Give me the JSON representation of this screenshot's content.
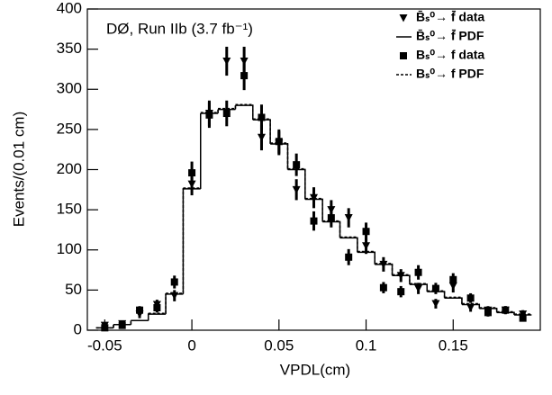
{
  "chart_data": {
    "type": "step-points",
    "annotation": "DØ, Run IIb (3.7 fb⁻¹)",
    "x_label": "VPDL(cm)",
    "y_label": "Events/(0.01 cm)",
    "xlim": [
      -0.06,
      0.2
    ],
    "ylim": [
      0,
      400
    ],
    "xticks": [
      -0.05,
      0,
      0.05,
      0.1,
      0.15
    ],
    "yticks": [
      0,
      50,
      100,
      150,
      200,
      250,
      300,
      350,
      400
    ],
    "legend": "upper right",
    "x": [
      -0.05,
      -0.04,
      -0.03,
      -0.02,
      -0.01,
      0,
      0.01,
      0.02,
      0.03,
      0.04,
      0.05,
      0.06,
      0.07,
      0.08,
      0.09,
      0.1,
      0.11,
      0.12,
      0.13,
      0.14,
      0.15,
      0.16,
      0.17,
      0.18,
      0.19
    ],
    "bins": [
      -0.055,
      -0.045,
      -0.035,
      -0.025,
      -0.015,
      -0.005,
      0.005,
      0.015,
      0.025,
      0.035,
      0.045,
      0.055,
      0.065,
      0.075,
      0.085,
      0.095,
      0.105,
      0.115,
      0.125,
      0.135,
      0.145,
      0.155,
      0.165,
      0.175,
      0.185,
      0.195
    ],
    "series": [
      {
        "name": "B̄ₛ⁰→ f̄ data",
        "kind": "points",
        "marker": "triangle-down",
        "color": "#000000",
        "values": [
          6,
          8,
          20,
          32,
          43,
          182,
          270,
          335,
          335,
          240,
          233,
          175,
          165,
          150,
          140,
          105,
          82,
          68,
          52,
          33,
          55,
          28,
          25,
          25,
          20
        ],
        "errors": [
          3,
          3,
          5,
          6,
          7,
          14,
          16,
          18,
          18,
          16,
          15,
          13,
          13,
          12,
          12,
          10,
          9,
          8,
          7,
          6,
          8,
          5,
          5,
          5,
          5
        ]
      },
      {
        "name": "B̄ₛ⁰→ f̄ PDF",
        "kind": "step",
        "line": "solid",
        "color": "#000000",
        "values": [
          3,
          7,
          12,
          20,
          45,
          176,
          270,
          275,
          280,
          262,
          232,
          200,
          163,
          135,
          115,
          97,
          82,
          68,
          57,
          48,
          40,
          32,
          27,
          22,
          19
        ]
      },
      {
        "name": "Bₛ⁰→ f data",
        "kind": "points",
        "marker": "square",
        "color": "#000000",
        "values": [
          3,
          6,
          25,
          28,
          60,
          196,
          268,
          270,
          317,
          265,
          235,
          206,
          136,
          140,
          91,
          123,
          53,
          48,
          72,
          52,
          63,
          40,
          22,
          25,
          15
        ],
        "errors": [
          2,
          3,
          5,
          6,
          8,
          14,
          16,
          16,
          18,
          16,
          15,
          14,
          12,
          12,
          10,
          11,
          7,
          7,
          9,
          7,
          8,
          6,
          5,
          5,
          4
        ]
      },
      {
        "name": "Bₛ⁰→ f PDF",
        "kind": "step",
        "line": "dashed",
        "color": "#000000",
        "values": [
          3,
          7,
          12,
          21,
          46,
          177,
          271,
          276,
          281,
          263,
          233,
          201,
          164,
          136,
          116,
          98,
          83,
          69,
          58,
          49,
          41,
          33,
          28,
          23,
          20
        ]
      }
    ]
  }
}
